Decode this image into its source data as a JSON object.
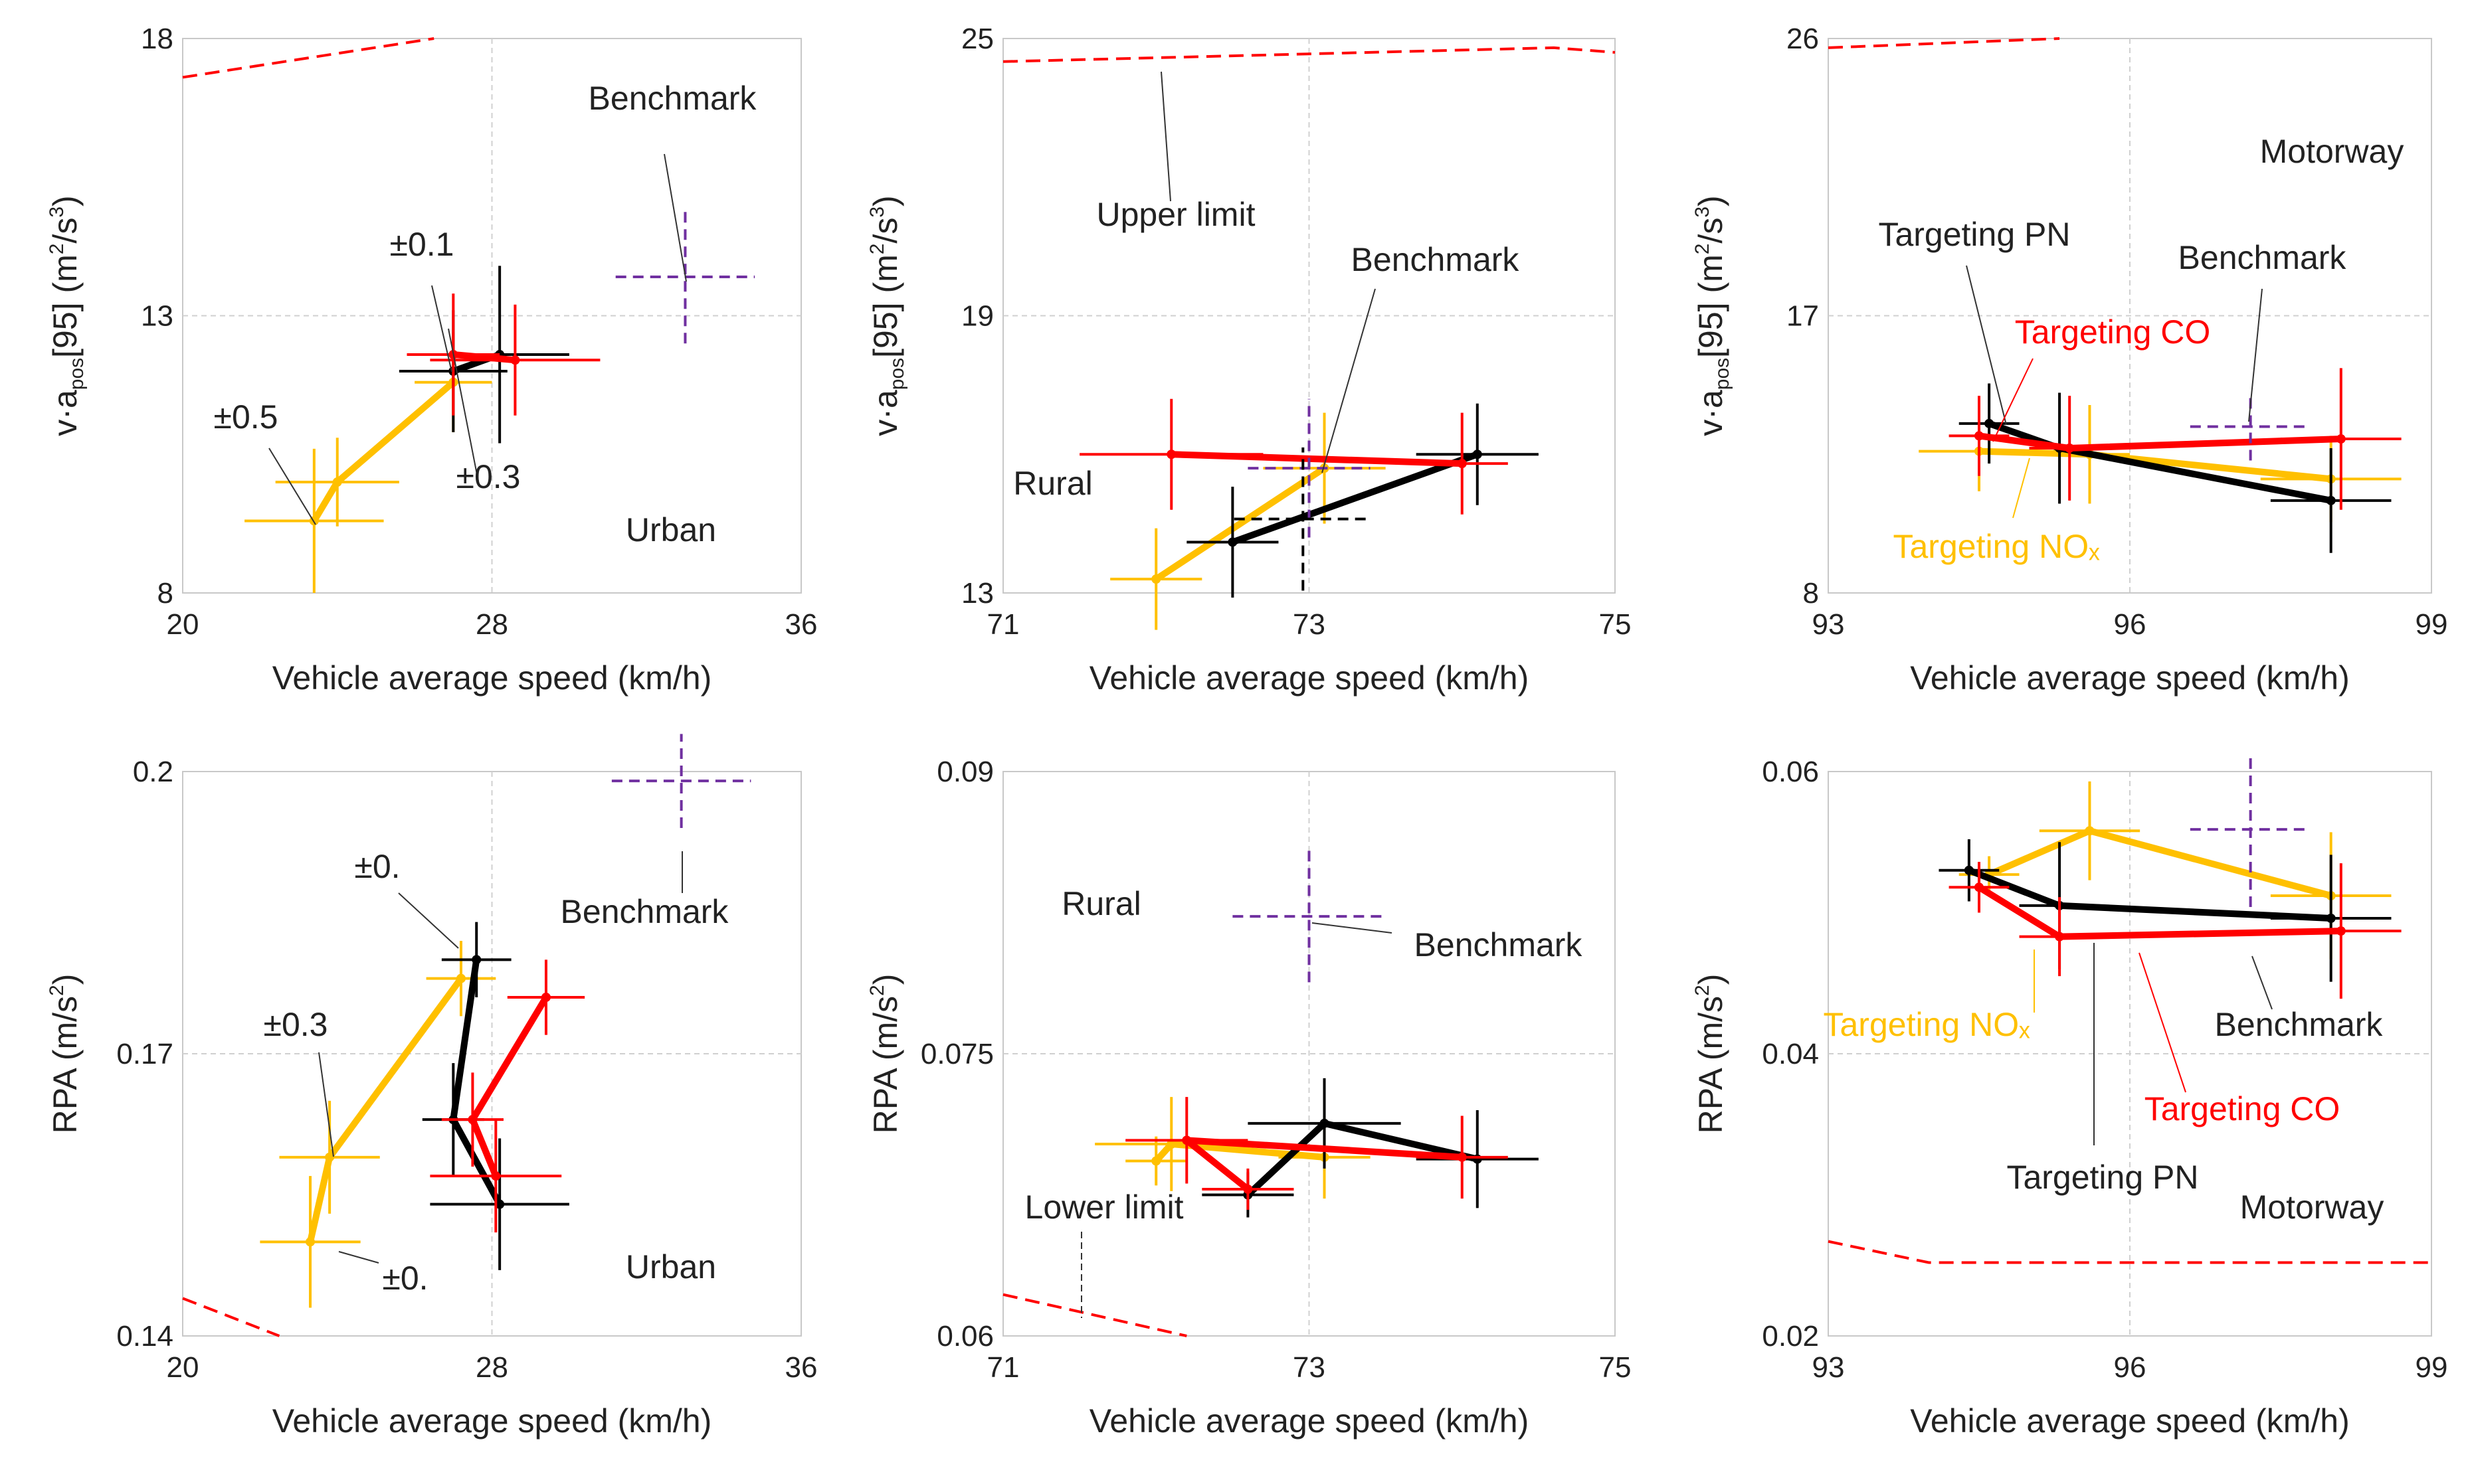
{
  "colors": {
    "black": "#000000",
    "red": "#ff0000",
    "yellow": "#ffc000",
    "purple": "#7030a0",
    "grid": "#d0d0d0",
    "axis": "#c8c8c8"
  },
  "chart_data": [
    {
      "id": "p1",
      "type": "scatter",
      "region": "Urban",
      "xlabel": "Vehicle average speed (km/h)",
      "ylabel": {
        "pre": "v·a",
        "sub": "pos",
        "post": "[95] (m",
        "sup1": "2",
        "mid": "/s",
        "sup2": "3",
        "end": ")"
      },
      "xlim": [
        20,
        36
      ],
      "ylim": [
        8,
        18
      ],
      "xticks": [
        "20",
        "28",
        "36"
      ],
      "yticks": [
        "8",
        "13",
        "18"
      ],
      "limits": [
        {
          "name": "Upper limit",
          "points": [
            [
              20,
              17.3
            ],
            [
              26.5,
              18
            ]
          ]
        }
      ],
      "series": [
        {
          "name": "Targeting NOx",
          "color": "yellow",
          "points": [
            [
              23.4,
              9.3
            ],
            [
              24,
              10
            ],
            [
              27,
              11.8
            ]
          ],
          "errors": [
            [
              1.8,
              1.3
            ],
            [
              1.6,
              0.8
            ],
            [
              1.0,
              0.9
            ]
          ]
        },
        {
          "name": "Targeting PN",
          "color": "black",
          "points": [
            [
              27,
              12
            ],
            [
              28.2,
              12.3
            ]
          ],
          "errors": [
            [
              1.4,
              1.1
            ],
            [
              1.8,
              1.6
            ]
          ]
        },
        {
          "name": "Targeting CO",
          "color": "red",
          "points": [
            [
              27,
              12.3
            ],
            [
              28.6,
              12.2
            ]
          ],
          "errors": [
            [
              1.2,
              1.1
            ],
            [
              2.2,
              1.0
            ]
          ]
        },
        {
          "name": "Benchmark",
          "color": "purple",
          "dashed": true,
          "points": [
            [
              33,
              13.7
            ]
          ],
          "errors": [
            [
              1.8,
              1.2
            ]
          ]
        }
      ],
      "labels": [
        "Benchmark",
        "±0.1",
        "±0.5",
        "±0.3",
        "Urban"
      ]
    },
    {
      "id": "p2",
      "type": "scatter",
      "region": "Rural",
      "xlabel": "Vehicle average speed (km/h)",
      "ylabel": {
        "pre": "v·a",
        "sub": "pos",
        "post": "[95] (m",
        "sup1": "2",
        "mid": "/s",
        "sup2": "3",
        "end": ")"
      },
      "xlim": [
        71,
        75
      ],
      "ylim": [
        13,
        25
      ],
      "xticks": [
        "71",
        "73",
        "75"
      ],
      "yticks": [
        "13",
        "19",
        "25"
      ],
      "limits": [
        {
          "name": "Upper limit",
          "points": [
            [
              71,
              24.5
            ],
            [
              74.6,
              24.8
            ],
            [
              75,
              24.7
            ]
          ]
        }
      ],
      "series": [
        {
          "name": "Targeting NOx",
          "color": "yellow",
          "points": [
            [
              72,
              13.3
            ],
            [
              73.1,
              15.7
            ]
          ],
          "errors": [
            [
              0.3,
              1.1
            ],
            [
              0.4,
              1.2
            ]
          ]
        },
        {
          "name": "Targeting PN",
          "color": "black",
          "points": [
            [
              72.5,
              14.1
            ],
            [
              74.1,
              16.0
            ]
          ],
          "errors": [
            [
              0.3,
              1.2
            ],
            [
              0.4,
              1.1
            ]
          ]
        },
        {
          "name": "Targeting CO",
          "color": "red",
          "points": [
            [
              72.1,
              16
            ],
            [
              74.0,
              15.8
            ]
          ],
          "errors": [
            [
              0.6,
              1.2
            ],
            [
              0.3,
              1.1
            ]
          ]
        },
        {
          "name": "Benchmark",
          "color": "purple",
          "dashed": true,
          "points": [
            [
              73,
              15.7
            ]
          ],
          "errors": [
            [
              0.4,
              1.5
            ]
          ]
        },
        {
          "name": "Benchmark",
          "color": "black",
          "dashed": true,
          "points": [
            [
              72.96,
              14.6
            ]
          ],
          "errors": [
            [
              0.45,
              1.55
            ]
          ]
        }
      ],
      "labels": [
        "Upper limit",
        "Benchmark",
        "Rural"
      ]
    },
    {
      "id": "p3",
      "type": "scatter",
      "region": "Motorway",
      "xlabel": "Vehicle average speed (km/h)",
      "ylabel": {
        "pre": "v·a",
        "sub": "pos",
        "post": "[95] (m",
        "sup1": "2",
        "mid": "/s",
        "sup2": "3",
        "end": ")"
      },
      "xlim": [
        93,
        99
      ],
      "ylim": [
        8,
        26
      ],
      "xticks": [
        "93",
        "96",
        "99"
      ],
      "yticks": [
        "8",
        "17",
        "26"
      ],
      "limits": [
        {
          "name": "Upper limit",
          "points": [
            [
              93,
              25.7
            ],
            [
              95.3,
              26
            ]
          ]
        }
      ],
      "series": [
        {
          "name": "Targeting NOx",
          "color": "yellow",
          "points": [
            [
              94.5,
              12.6
            ],
            [
              95.6,
              12.5
            ],
            [
              98,
              11.7
            ]
          ],
          "errors": [
            [
              0.6,
              1.3
            ],
            [
              0.4,
              1.6
            ],
            [
              0.7,
              1.4
            ]
          ]
        },
        {
          "name": "Targeting PN",
          "color": "black",
          "points": [
            [
              94.6,
              13.5
            ],
            [
              95.3,
              12.7
            ],
            [
              98,
              11
            ]
          ],
          "errors": [
            [
              0.3,
              1.3
            ],
            [
              0.3,
              1.8
            ],
            [
              0.6,
              1.7
            ]
          ]
        },
        {
          "name": "Targeting CO",
          "color": "red",
          "points": [
            [
              94.5,
              13.1
            ],
            [
              95.4,
              12.7
            ],
            [
              98.1,
              13
            ]
          ],
          "errors": [
            [
              0.3,
              1.3
            ],
            [
              0.4,
              1.7
            ],
            [
              0.6,
              2.3
            ]
          ]
        },
        {
          "name": "Benchmark",
          "color": "purple",
          "dashed": true,
          "points": [
            [
              97.2,
              13.4
            ]
          ],
          "errors": [
            [
              0.6,
              1.1
            ]
          ]
        }
      ],
      "labels": [
        "Motorway",
        "Targeting PN",
        "Benchmark",
        "Targeting CO",
        "Targeting NOₓ"
      ]
    },
    {
      "id": "p4",
      "type": "scatter",
      "region": "Urban",
      "xlabel": "Vehicle average speed (km/h)",
      "ylabel": {
        "pre": "RPA (m/s",
        "sup1": "2",
        "end": ")"
      },
      "xlim": [
        20,
        36
      ],
      "ylim": [
        0.14,
        0.2
      ],
      "xticks": [
        "20",
        "28",
        "36"
      ],
      "yticks": [
        "0.14",
        "0.17",
        "0.2"
      ],
      "limits": [
        {
          "name": "Lower limit",
          "points": [
            [
              20,
              0.144
            ],
            [
              22.5,
              0.14
            ]
          ]
        }
      ],
      "series": [
        {
          "name": "Targeting NOx",
          "color": "yellow",
          "points": [
            [
              23.3,
              0.15
            ],
            [
              23.8,
              0.159
            ],
            [
              27.2,
              0.178
            ]
          ],
          "errors": [
            [
              1.3,
              0.007
            ],
            [
              1.3,
              0.006
            ],
            [
              0.9,
              0.004
            ]
          ]
        },
        {
          "name": "Targeting PN",
          "color": "black",
          "points": [
            [
              28.2,
              0.154
            ],
            [
              27,
              0.163
            ],
            [
              27.6,
              0.18
            ]
          ],
          "errors": [
            [
              1.8,
              0.007
            ],
            [
              0.8,
              0.006
            ],
            [
              0.9,
              0.004
            ]
          ]
        },
        {
          "name": "Targeting CO",
          "color": "red",
          "points": [
            [
              28.1,
              0.157
            ],
            [
              27.5,
              0.163
            ],
            [
              29.4,
              0.176
            ]
          ],
          "errors": [
            [
              1.7,
              0.006
            ],
            [
              0.8,
              0.005
            ],
            [
              1.0,
              0.004
            ]
          ]
        },
        {
          "name": "Benchmark",
          "color": "purple",
          "dashed": true,
          "points": [
            [
              32.9,
              0.199
            ]
          ],
          "errors": [
            [
              1.8,
              0.005
            ]
          ]
        }
      ],
      "labels": [
        "Benchmark",
        "±0.",
        "±0.3",
        "±0.",
        "Urban"
      ]
    },
    {
      "id": "p5",
      "type": "scatter",
      "region": "Rural",
      "xlabel": "Vehicle average speed (km/h)",
      "ylabel": {
        "pre": "RPA (m/s",
        "sup1": "2",
        "end": ")"
      },
      "xlim": [
        71,
        75
      ],
      "ylim": [
        0.06,
        0.09
      ],
      "xticks": [
        "71",
        "73",
        "75"
      ],
      "yticks": [
        "0.06",
        "0.075",
        "0.09"
      ],
      "limits": [
        {
          "name": "Lower limit",
          "points": [
            [
              71,
              0.0622
            ],
            [
              72.2,
              0.06
            ]
          ]
        }
      ],
      "series": [
        {
          "name": "Targeting NOx",
          "color": "yellow",
          "points": [
            [
              72,
              0.0693
            ],
            [
              72.1,
              0.0702
            ],
            [
              73.1,
              0.0695
            ]
          ],
          "errors": [
            [
              0.2,
              0.0013
            ],
            [
              0.5,
              0.0025
            ],
            [
              0.3,
              0.0022
            ]
          ]
        },
        {
          "name": "Targeting PN",
          "color": "black",
          "points": [
            [
              72.6,
              0.0675
            ],
            [
              73.1,
              0.0713
            ],
            [
              74.1,
              0.0694
            ]
          ],
          "errors": [
            [
              0.3,
              0.0012
            ],
            [
              0.5,
              0.0024
            ],
            [
              0.4,
              0.0026
            ]
          ]
        },
        {
          "name": "Targeting CO",
          "color": "red",
          "points": [
            [
              72.6,
              0.0678
            ],
            [
              72.2,
              0.0704
            ],
            [
              74,
              0.0695
            ]
          ],
          "errors": [
            [
              0.3,
              0.0011
            ],
            [
              0.4,
              0.0023
            ],
            [
              0.3,
              0.0022
            ]
          ]
        },
        {
          "name": "Benchmark",
          "color": "purple",
          "dashed": true,
          "points": [
            [
              73,
              0.0823
            ]
          ],
          "errors": [
            [
              0.5,
              0.0035
            ]
          ]
        }
      ],
      "labels": [
        "Rural",
        "Benchmark",
        "Lower limit"
      ]
    },
    {
      "id": "p6",
      "type": "scatter",
      "region": "Motorway",
      "xlabel": "Vehicle average speed (km/h)",
      "ylabel": {
        "pre": "RPA (m/s",
        "sup1": "2",
        "end": ")"
      },
      "xlim": [
        93,
        99
      ],
      "ylim": [
        0.02,
        0.06
      ],
      "xticks": [
        "93",
        "96",
        "99"
      ],
      "yticks": [
        "0.02",
        "0.04",
        "0.06"
      ],
      "limits": [
        {
          "name": "Lower limit",
          "points": [
            [
              93,
              0.0267
            ],
            [
              94,
              0.0252
            ],
            [
              99,
              0.0252
            ]
          ]
        }
      ],
      "series": [
        {
          "name": "Targeting NOx",
          "color": "yellow",
          "points": [
            [
              94.6,
              0.0527
            ],
            [
              95.6,
              0.0558
            ],
            [
              98,
              0.0512
            ]
          ],
          "errors": [
            [
              0.3,
              0.0013
            ],
            [
              0.5,
              0.0035
            ],
            [
              0.6,
              0.0045
            ]
          ]
        },
        {
          "name": "Targeting PN",
          "color": "black",
          "points": [
            [
              94.4,
              0.053
            ],
            [
              95.3,
              0.0505
            ],
            [
              98,
              0.0496
            ]
          ],
          "errors": [
            [
              0.3,
              0.0022
            ],
            [
              0.4,
              0.0045
            ],
            [
              0.6,
              0.0045
            ]
          ]
        },
        {
          "name": "Targeting CO",
          "color": "red",
          "points": [
            [
              94.5,
              0.0518
            ],
            [
              95.3,
              0.0483
            ],
            [
              98.1,
              0.0487
            ]
          ],
          "errors": [
            [
              0.3,
              0.0018
            ],
            [
              0.4,
              0.0028
            ],
            [
              0.6,
              0.0048
            ]
          ]
        },
        {
          "name": "Benchmark",
          "color": "purple",
          "dashed": true,
          "points": [
            [
              97.2,
              0.0559
            ]
          ],
          "errors": [
            [
              0.6,
              0.0055
            ]
          ]
        }
      ],
      "labels": [
        "Targeting NOₓ",
        "Benchmark",
        "Targeting CO",
        "Targeting PN",
        "Motorway"
      ]
    }
  ]
}
